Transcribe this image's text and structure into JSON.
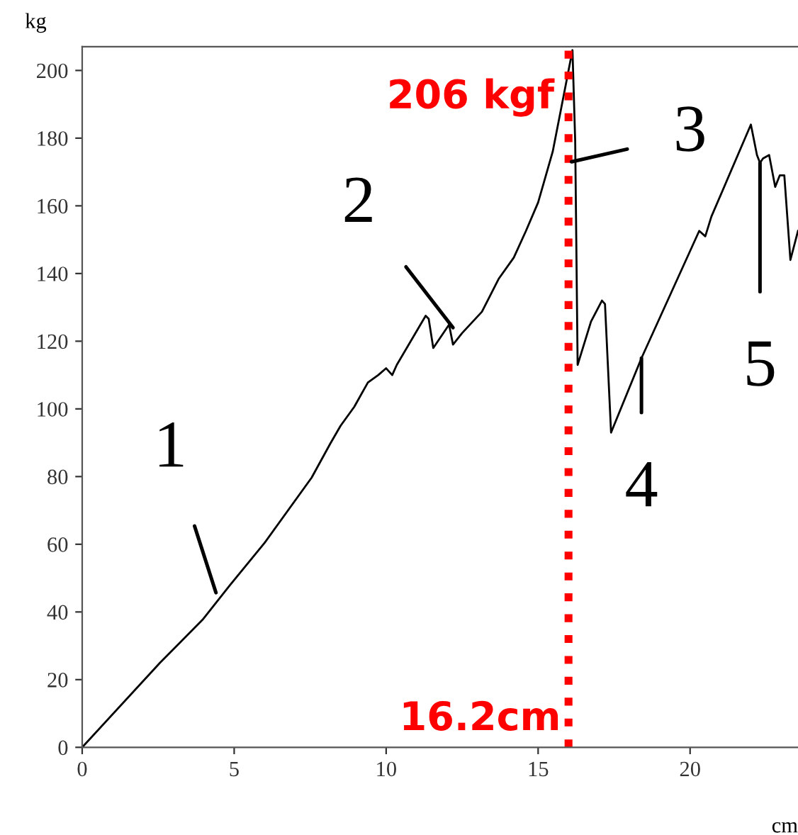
{
  "chart_data": {
    "type": "line",
    "xlabel": "cm",
    "ylabel": "kg",
    "series": [
      {
        "color": "#000000",
        "x": [
          0,
          2.56,
          3.96,
          4.85,
          6.0,
          7.55,
          8.16,
          8.5,
          8.95,
          9.4,
          9.74,
          10.0,
          10.2,
          10.35,
          11.3,
          11.4,
          11.55,
          12.07,
          12.2,
          12.5,
          13.15,
          13.7,
          14.2,
          14.6,
          15.0,
          15.48,
          15.85,
          16.13,
          16.22,
          16.3,
          16.74,
          17.1,
          17.2,
          17.4,
          18.4,
          20.3,
          20.5,
          20.7,
          22.0,
          22.2,
          22.3,
          22.4,
          22.6,
          22.8,
          22.95,
          23.1,
          23.3,
          23.55
        ],
        "values": [
          0,
          25,
          37.7,
          47.8,
          60.4,
          79.7,
          89.7,
          95,
          100.6,
          107.8,
          110,
          112,
          110,
          113,
          127.5,
          126.6,
          118,
          124.9,
          119,
          122.4,
          128.7,
          138.4,
          144.7,
          152.6,
          161,
          176,
          193,
          206,
          179,
          113,
          125.8,
          132,
          131,
          93,
          115,
          152.6,
          151,
          156.8,
          184,
          175,
          172.7,
          174,
          175,
          165.6,
          169,
          169,
          144,
          152.6
        ]
      }
    ],
    "xlim": [
      0,
      23.55
    ],
    "ylim": [
      0,
      207
    ],
    "xticks": [
      0,
      5,
      10,
      15,
      20
    ],
    "yticks": [
      0,
      20,
      40,
      60,
      80,
      100,
      120,
      140,
      160,
      180,
      200
    ],
    "grid": false,
    "legend": false,
    "marker": "none",
    "line_style": "solid",
    "ref_lines": [
      {
        "axis": "x",
        "value": 16,
        "label": "16.2cm",
        "color": "#ff0000",
        "line_style": "dotted"
      }
    ],
    "annotations": [
      {
        "text": "206 kgf",
        "x": 16.13,
        "y": 206
      },
      {
        "text": "1",
        "x": 4.4,
        "y": 45.7
      },
      {
        "text": "2",
        "x": 12.2,
        "y": 124
      },
      {
        "text": "3",
        "x": 16.1,
        "y": 173
      },
      {
        "text": "4",
        "x": 18.4,
        "y": 115
      },
      {
        "text": "5",
        "x": 22.3,
        "y": 172.7
      }
    ]
  }
}
